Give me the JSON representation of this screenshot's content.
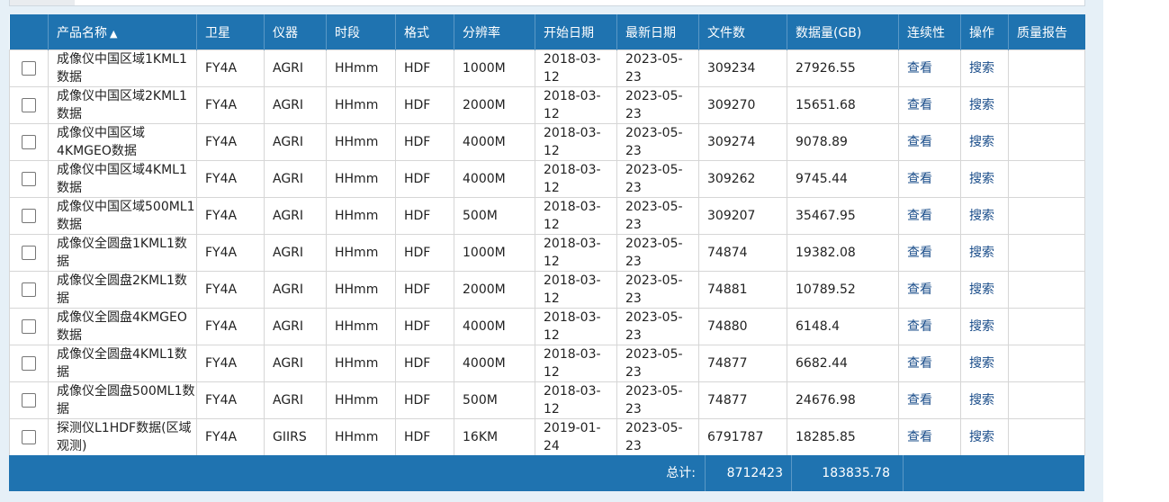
{
  "columns": {
    "name": "产品名称",
    "satellite": "卫星",
    "instrument": "仪器",
    "period": "时段",
    "format": "格式",
    "resolution": "分辨率",
    "start": "开始日期",
    "latest": "最新日期",
    "files": "文件数",
    "volume": "数据量(GB)",
    "continuity": "连续性",
    "action": "操作",
    "quality": "质量报告"
  },
  "sort_icon": "▲",
  "rows": [
    {
      "name": "成像仪中国区域1KML1数据",
      "satellite": "FY4A",
      "instrument": "AGRI",
      "period": "HHmm",
      "format": "HDF",
      "resolution": "1000M",
      "start": "2018-03-12",
      "latest": "2023-05-23",
      "files": "309234",
      "volume": "27926.55",
      "view": "查看",
      "search": "搜索"
    },
    {
      "name": "成像仪中国区域2KML1数据",
      "satellite": "FY4A",
      "instrument": "AGRI",
      "period": "HHmm",
      "format": "HDF",
      "resolution": "2000M",
      "start": "2018-03-12",
      "latest": "2023-05-23",
      "files": "309270",
      "volume": "15651.68",
      "view": "查看",
      "search": "搜索"
    },
    {
      "name": "成像仪中国区域4KMGEO数据",
      "satellite": "FY4A",
      "instrument": "AGRI",
      "period": "HHmm",
      "format": "HDF",
      "resolution": "4000M",
      "start": "2018-03-12",
      "latest": "2023-05-23",
      "files": "309274",
      "volume": "9078.89",
      "view": "查看",
      "search": "搜索"
    },
    {
      "name": "成像仪中国区域4KML1数据",
      "satellite": "FY4A",
      "instrument": "AGRI",
      "period": "HHmm",
      "format": "HDF",
      "resolution": "4000M",
      "start": "2018-03-12",
      "latest": "2023-05-23",
      "files": "309262",
      "volume": "9745.44",
      "view": "查看",
      "search": "搜索"
    },
    {
      "name": "成像仪中国区域500ML1数据",
      "satellite": "FY4A",
      "instrument": "AGRI",
      "period": "HHmm",
      "format": "HDF",
      "resolution": "500M",
      "start": "2018-03-12",
      "latest": "2023-05-23",
      "files": "309207",
      "volume": "35467.95",
      "view": "查看",
      "search": "搜索"
    },
    {
      "name": "成像仪全圆盘1KML1数据",
      "satellite": "FY4A",
      "instrument": "AGRI",
      "period": "HHmm",
      "format": "HDF",
      "resolution": "1000M",
      "start": "2018-03-12",
      "latest": "2023-05-23",
      "files": "74874",
      "volume": "19382.08",
      "view": "查看",
      "search": "搜索"
    },
    {
      "name": "成像仪全圆盘2KML1数据",
      "satellite": "FY4A",
      "instrument": "AGRI",
      "period": "HHmm",
      "format": "HDF",
      "resolution": "2000M",
      "start": "2018-03-12",
      "latest": "2023-05-23",
      "files": "74881",
      "volume": "10789.52",
      "view": "查看",
      "search": "搜索"
    },
    {
      "name": "成像仪全圆盘4KMGEO数据",
      "satellite": "FY4A",
      "instrument": "AGRI",
      "period": "HHmm",
      "format": "HDF",
      "resolution": "4000M",
      "start": "2018-03-12",
      "latest": "2023-05-23",
      "files": "74880",
      "volume": "6148.4",
      "view": "查看",
      "search": "搜索"
    },
    {
      "name": "成像仪全圆盘4KML1数据",
      "satellite": "FY4A",
      "instrument": "AGRI",
      "period": "HHmm",
      "format": "HDF",
      "resolution": "4000M",
      "start": "2018-03-12",
      "latest": "2023-05-23",
      "files": "74877",
      "volume": "6682.44",
      "view": "查看",
      "search": "搜索"
    },
    {
      "name": "成像仪全圆盘500ML1数据",
      "satellite": "FY4A",
      "instrument": "AGRI",
      "period": "HHmm",
      "format": "HDF",
      "resolution": "500M",
      "start": "2018-03-12",
      "latest": "2023-05-23",
      "files": "74877",
      "volume": "24676.98",
      "view": "查看",
      "search": "搜索"
    },
    {
      "name": "探测仪L1HDF数据(区域观测)",
      "satellite": "FY4A",
      "instrument": "GIIRS",
      "period": "HHmm",
      "format": "HDF",
      "resolution": "16KM",
      "start": "2019-01-24",
      "latest": "2023-05-23",
      "files": "6791787",
      "volume": "18285.85",
      "view": "查看",
      "search": "搜索"
    }
  ],
  "footer": {
    "label": "总计:",
    "total_files": "8712423",
    "total_volume": "183835.78"
  },
  "colors": {
    "header_bg": "#1f73b0",
    "link": "#1a4d8a",
    "page_bg": "#e6f0f7"
  }
}
